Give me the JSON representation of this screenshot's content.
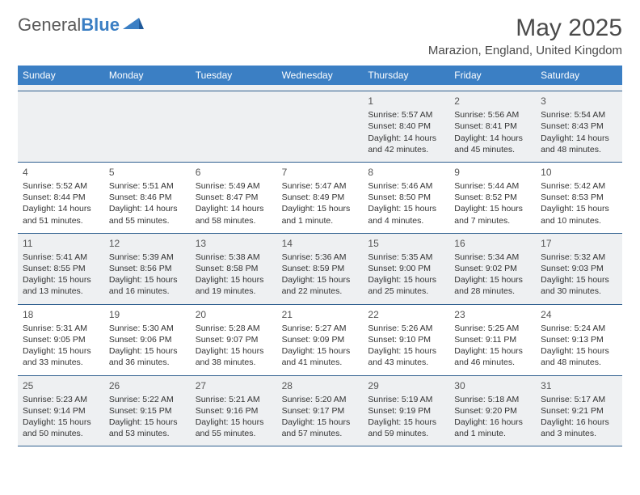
{
  "brand": {
    "name_a": "General",
    "name_b": "Blue"
  },
  "title": "May 2025",
  "location": "Marazion, England, United Kingdom",
  "colors": {
    "header_bg": "#3b7fc4",
    "header_text": "#ffffff",
    "alt_row_bg": "#eef0f2",
    "border": "#2f5f8f",
    "text": "#333333",
    "title_text": "#4a4a4a",
    "logo_gray": "#5a5a5a",
    "logo_blue": "#3b7fc4"
  },
  "day_labels": [
    "Sunday",
    "Monday",
    "Tuesday",
    "Wednesday",
    "Thursday",
    "Friday",
    "Saturday"
  ],
  "weeks": [
    [
      {
        "n": "",
        "sunrise": "",
        "sunset": "",
        "daylight": ""
      },
      {
        "n": "",
        "sunrise": "",
        "sunset": "",
        "daylight": ""
      },
      {
        "n": "",
        "sunrise": "",
        "sunset": "",
        "daylight": ""
      },
      {
        "n": "",
        "sunrise": "",
        "sunset": "",
        "daylight": ""
      },
      {
        "n": "1",
        "sunrise": "Sunrise: 5:57 AM",
        "sunset": "Sunset: 8:40 PM",
        "daylight": "Daylight: 14 hours and 42 minutes."
      },
      {
        "n": "2",
        "sunrise": "Sunrise: 5:56 AM",
        "sunset": "Sunset: 8:41 PM",
        "daylight": "Daylight: 14 hours and 45 minutes."
      },
      {
        "n": "3",
        "sunrise": "Sunrise: 5:54 AM",
        "sunset": "Sunset: 8:43 PM",
        "daylight": "Daylight: 14 hours and 48 minutes."
      }
    ],
    [
      {
        "n": "4",
        "sunrise": "Sunrise: 5:52 AM",
        "sunset": "Sunset: 8:44 PM",
        "daylight": "Daylight: 14 hours and 51 minutes."
      },
      {
        "n": "5",
        "sunrise": "Sunrise: 5:51 AM",
        "sunset": "Sunset: 8:46 PM",
        "daylight": "Daylight: 14 hours and 55 minutes."
      },
      {
        "n": "6",
        "sunrise": "Sunrise: 5:49 AM",
        "sunset": "Sunset: 8:47 PM",
        "daylight": "Daylight: 14 hours and 58 minutes."
      },
      {
        "n": "7",
        "sunrise": "Sunrise: 5:47 AM",
        "sunset": "Sunset: 8:49 PM",
        "daylight": "Daylight: 15 hours and 1 minute."
      },
      {
        "n": "8",
        "sunrise": "Sunrise: 5:46 AM",
        "sunset": "Sunset: 8:50 PM",
        "daylight": "Daylight: 15 hours and 4 minutes."
      },
      {
        "n": "9",
        "sunrise": "Sunrise: 5:44 AM",
        "sunset": "Sunset: 8:52 PM",
        "daylight": "Daylight: 15 hours and 7 minutes."
      },
      {
        "n": "10",
        "sunrise": "Sunrise: 5:42 AM",
        "sunset": "Sunset: 8:53 PM",
        "daylight": "Daylight: 15 hours and 10 minutes."
      }
    ],
    [
      {
        "n": "11",
        "sunrise": "Sunrise: 5:41 AM",
        "sunset": "Sunset: 8:55 PM",
        "daylight": "Daylight: 15 hours and 13 minutes."
      },
      {
        "n": "12",
        "sunrise": "Sunrise: 5:39 AM",
        "sunset": "Sunset: 8:56 PM",
        "daylight": "Daylight: 15 hours and 16 minutes."
      },
      {
        "n": "13",
        "sunrise": "Sunrise: 5:38 AM",
        "sunset": "Sunset: 8:58 PM",
        "daylight": "Daylight: 15 hours and 19 minutes."
      },
      {
        "n": "14",
        "sunrise": "Sunrise: 5:36 AM",
        "sunset": "Sunset: 8:59 PM",
        "daylight": "Daylight: 15 hours and 22 minutes."
      },
      {
        "n": "15",
        "sunrise": "Sunrise: 5:35 AM",
        "sunset": "Sunset: 9:00 PM",
        "daylight": "Daylight: 15 hours and 25 minutes."
      },
      {
        "n": "16",
        "sunrise": "Sunrise: 5:34 AM",
        "sunset": "Sunset: 9:02 PM",
        "daylight": "Daylight: 15 hours and 28 minutes."
      },
      {
        "n": "17",
        "sunrise": "Sunrise: 5:32 AM",
        "sunset": "Sunset: 9:03 PM",
        "daylight": "Daylight: 15 hours and 30 minutes."
      }
    ],
    [
      {
        "n": "18",
        "sunrise": "Sunrise: 5:31 AM",
        "sunset": "Sunset: 9:05 PM",
        "daylight": "Daylight: 15 hours and 33 minutes."
      },
      {
        "n": "19",
        "sunrise": "Sunrise: 5:30 AM",
        "sunset": "Sunset: 9:06 PM",
        "daylight": "Daylight: 15 hours and 36 minutes."
      },
      {
        "n": "20",
        "sunrise": "Sunrise: 5:28 AM",
        "sunset": "Sunset: 9:07 PM",
        "daylight": "Daylight: 15 hours and 38 minutes."
      },
      {
        "n": "21",
        "sunrise": "Sunrise: 5:27 AM",
        "sunset": "Sunset: 9:09 PM",
        "daylight": "Daylight: 15 hours and 41 minutes."
      },
      {
        "n": "22",
        "sunrise": "Sunrise: 5:26 AM",
        "sunset": "Sunset: 9:10 PM",
        "daylight": "Daylight: 15 hours and 43 minutes."
      },
      {
        "n": "23",
        "sunrise": "Sunrise: 5:25 AM",
        "sunset": "Sunset: 9:11 PM",
        "daylight": "Daylight: 15 hours and 46 minutes."
      },
      {
        "n": "24",
        "sunrise": "Sunrise: 5:24 AM",
        "sunset": "Sunset: 9:13 PM",
        "daylight": "Daylight: 15 hours and 48 minutes."
      }
    ],
    [
      {
        "n": "25",
        "sunrise": "Sunrise: 5:23 AM",
        "sunset": "Sunset: 9:14 PM",
        "daylight": "Daylight: 15 hours and 50 minutes."
      },
      {
        "n": "26",
        "sunrise": "Sunrise: 5:22 AM",
        "sunset": "Sunset: 9:15 PM",
        "daylight": "Daylight: 15 hours and 53 minutes."
      },
      {
        "n": "27",
        "sunrise": "Sunrise: 5:21 AM",
        "sunset": "Sunset: 9:16 PM",
        "daylight": "Daylight: 15 hours and 55 minutes."
      },
      {
        "n": "28",
        "sunrise": "Sunrise: 5:20 AM",
        "sunset": "Sunset: 9:17 PM",
        "daylight": "Daylight: 15 hours and 57 minutes."
      },
      {
        "n": "29",
        "sunrise": "Sunrise: 5:19 AM",
        "sunset": "Sunset: 9:19 PM",
        "daylight": "Daylight: 15 hours and 59 minutes."
      },
      {
        "n": "30",
        "sunrise": "Sunrise: 5:18 AM",
        "sunset": "Sunset: 9:20 PM",
        "daylight": "Daylight: 16 hours and 1 minute."
      },
      {
        "n": "31",
        "sunrise": "Sunrise: 5:17 AM",
        "sunset": "Sunset: 9:21 PM",
        "daylight": "Daylight: 16 hours and 3 minutes."
      }
    ]
  ]
}
